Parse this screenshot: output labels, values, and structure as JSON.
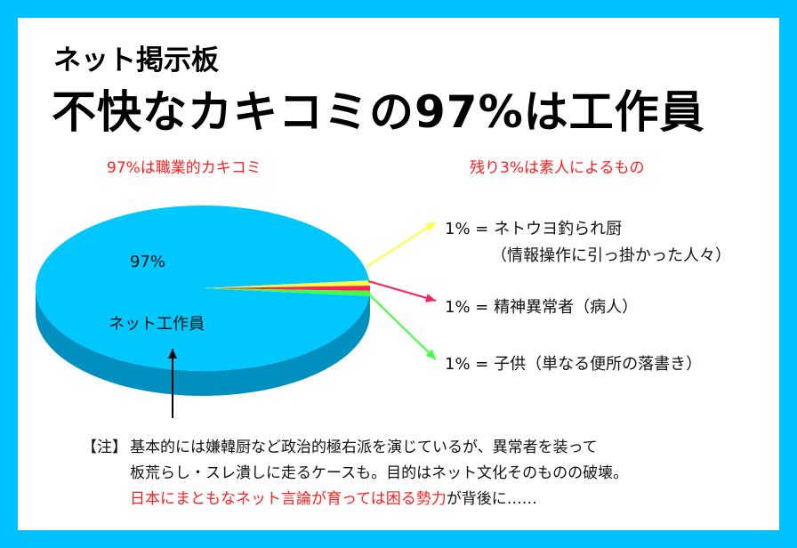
{
  "header": {
    "subtitle": "ネット掲示板",
    "title": "不快なカキコミの97%は工作員"
  },
  "captions": {
    "left": "97%は職業的カキコミ",
    "right": "残り3%は素人によるもの"
  },
  "colors": {
    "frame": "#00c0ff",
    "main_slice": "#00c8ff",
    "yellow_slice": "#ffff40",
    "pink_slice": "#ff2060",
    "green_slice": "#40ff40",
    "accent_text": "#ff2020"
  },
  "chart_data": {
    "type": "pie",
    "title": "",
    "categories": [
      "ネット工作員",
      "ネトウヨ釣られ厨",
      "精神異常者",
      "子供"
    ],
    "values": [
      97,
      1,
      1,
      1
    ],
    "unit": "%",
    "labels": {
      "main_value": "97%",
      "main_name": "ネット工作員",
      "yellow_line1": "1% = ネトウヨ釣られ厨",
      "yellow_line2": "（情報操作に引っ掛かった人々）",
      "pink_line": "1% = 精神異常者（病人）",
      "green_line": "1% = 子供（単なる便所の落書き）"
    },
    "grid": false,
    "legend": "none",
    "style": "3d"
  },
  "note": {
    "prefix": "【注】",
    "line1": "基本的には嫌韓厨など政治的極右派を演じているが、異常者を装って",
    "line2": "板荒らし・スレ潰しに走るケースも。目的はネット文化そのものの破壊。",
    "line3_red": "日本にまともなネット言論が育っては困る勢力",
    "line3_rest": "が背後に……"
  }
}
